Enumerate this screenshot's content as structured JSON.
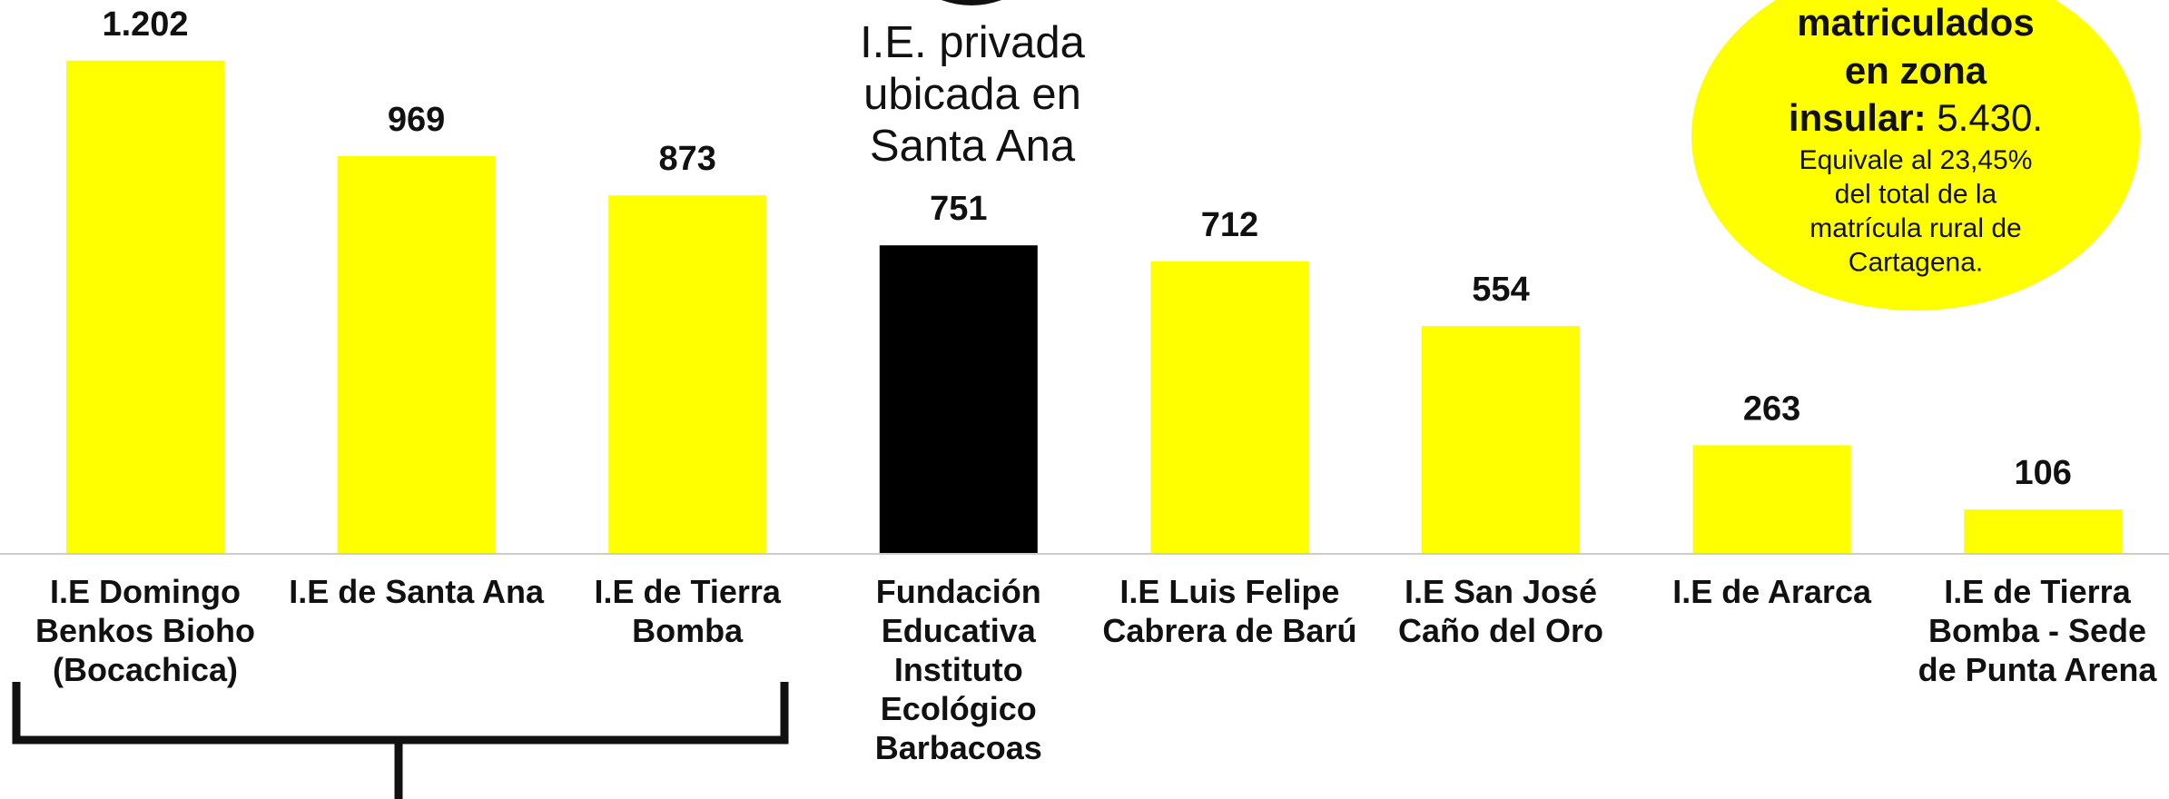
{
  "chart_data": {
    "type": "bar",
    "categories": [
      "I.E Domingo Benkos Bioho (Bocachica)",
      "I.E de Santa Ana",
      "I.E de Tierra Bomba",
      "Fundación Educativa Instituto Ecológico Barbacoas",
      "I.E Luis Felipe Cabrera de Barú",
      "I.E San José Caño del Oro",
      "I.E de Ararca",
      "I.E de Tierra Bomba - Sede de Punta Arena"
    ],
    "values": [
      1202,
      969,
      873,
      751,
      712,
      554,
      263,
      106
    ],
    "value_labels": [
      "1.202",
      "969",
      "873",
      "751",
      "712",
      "554",
      "263",
      "106"
    ],
    "colors": [
      "#ffff00",
      "#ffff00",
      "#ffff00",
      "#000000",
      "#ffff00",
      "#ffff00",
      "#ffff00",
      "#ffff00"
    ],
    "ylim": [
      0,
      1350
    ]
  },
  "annotation": {
    "lines": [
      "I.E. privada",
      "ubicada en",
      "Santa Ana"
    ]
  },
  "bubble": {
    "heading_lines": [
      "matriculados",
      "en zona"
    ],
    "label": "insular:",
    "value": "5.430.",
    "note_lines": [
      "Equivale al 23,45%",
      "del total de la",
      "matrícula rural de",
      "Cartagena."
    ]
  }
}
